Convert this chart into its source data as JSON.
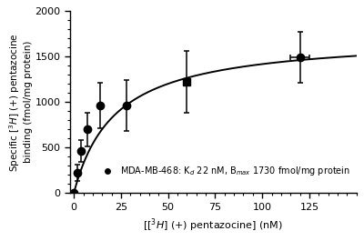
{
  "x_data": [
    0,
    2,
    4,
    7,
    14,
    28,
    60,
    120
  ],
  "y_data": [
    0,
    220,
    460,
    700,
    960,
    960,
    1220,
    1490
  ],
  "y_err": [
    0,
    90,
    120,
    185,
    250,
    280,
    340,
    280
  ],
  "x_err": [
    0,
    0,
    0,
    0,
    0,
    0,
    0,
    5
  ],
  "Kd": 22,
  "Bmax": 1730,
  "xlim": [
    -2,
    150
  ],
  "ylim": [
    0,
    2000
  ],
  "xticks": [
    0,
    25,
    50,
    75,
    100,
    125
  ],
  "yticks": [
    0,
    500,
    1000,
    1500,
    2000
  ],
  "curve_color": "#000000",
  "marker_color": "#000000",
  "bg_color": "#ffffff",
  "marker_size": 6,
  "square_point_index": 6,
  "figsize": [
    4.0,
    2.65
  ],
  "dpi": 100
}
